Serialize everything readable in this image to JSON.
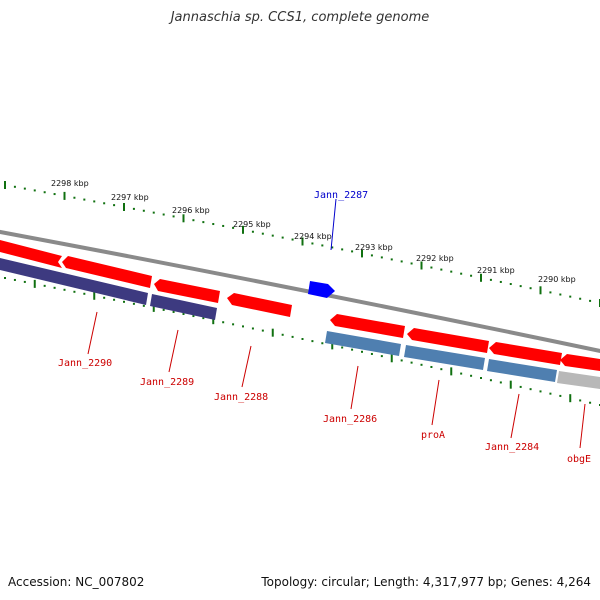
{
  "title": "Jannaschia sp. CCS1, complete genome",
  "footer": {
    "accession": "Accession: NC_007802",
    "summary": "Topology: circular; Length: 4,317,977 bp; Genes: 4,264"
  },
  "scale_labels": [
    "2298 kbp",
    "2297 kbp",
    "2296 kbp",
    "2295 kbp",
    "2294 kbp",
    "2293 kbp",
    "2292 kbp",
    "2291 kbp",
    "2290 kbp"
  ],
  "genes": [
    {
      "name": "Jann_2290",
      "strand": "reverse",
      "color": "#cc0000"
    },
    {
      "name": "Jann_2289",
      "strand": "reverse",
      "color": "#cc0000"
    },
    {
      "name": "Jann_2288",
      "strand": "reverse",
      "color": "#cc0000"
    },
    {
      "name": "Jann_2287",
      "strand": "forward",
      "color": "#0000cc"
    },
    {
      "name": "Jann_2286",
      "strand": "reverse",
      "color": "#cc0000"
    },
    {
      "name": "proA",
      "strand": "reverse",
      "color": "#cc0000"
    },
    {
      "name": "Jann_2284",
      "strand": "reverse",
      "color": "#cc0000"
    },
    {
      "name": "obgE",
      "strand": "reverse",
      "color": "#cc0000"
    }
  ],
  "colors": {
    "gene_red": "#ff0000",
    "gene_blue": "#0000ff",
    "cds_purple": "#3d3a80",
    "cds_steel": "#4f7fb0",
    "cds_grey": "#b8b8b8",
    "backbone": "#808080",
    "ticks": "#107010"
  }
}
